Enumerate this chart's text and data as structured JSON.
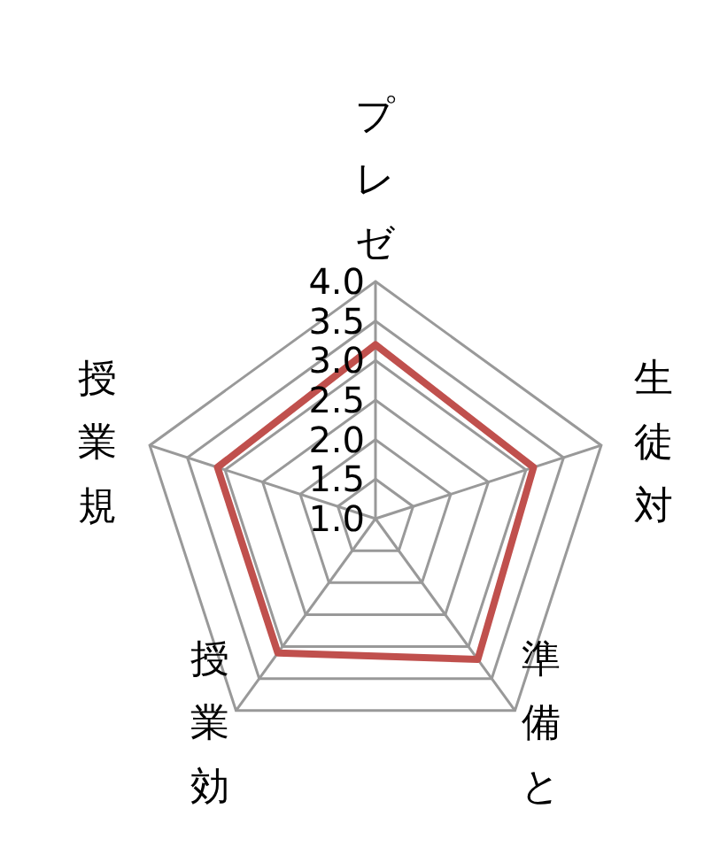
{
  "chart_data": {
    "type": "radar",
    "categories": [
      "プレゼ",
      "生徒対",
      "準備と",
      "授業効",
      "授業規"
    ],
    "series": [
      {
        "color": "#c0504d",
        "values": [
          3.2,
          3.1,
          3.2,
          3.1,
          3.1
        ]
      }
    ],
    "ylim": [
      1,
      4
    ],
    "yticks": [
      {
        "value": 1,
        "label": "1.0"
      },
      1.5,
      {
        "value": 2,
        "label": "2.0"
      },
      2.5,
      {
        "value": 3,
        "label": "3.0"
      },
      3.5,
      {
        "value": 4,
        "label": "4.0"
      }
    ],
    "grid": true
  }
}
